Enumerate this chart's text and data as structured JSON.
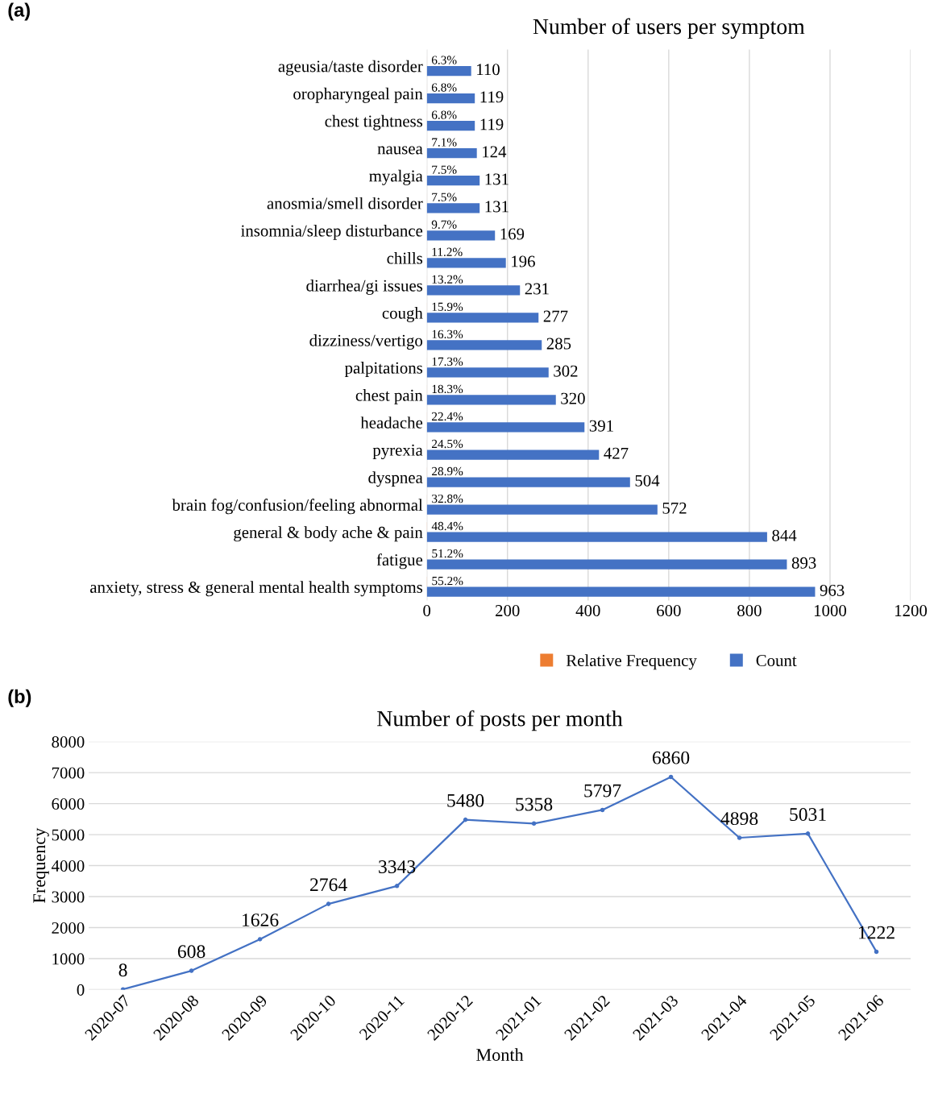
{
  "chart_data": [
    {
      "type": "bar",
      "orientation": "horizontal",
      "title": "Number of users per symptom",
      "categories": [
        "ageusia/taste disorder",
        "oropharyngeal pain",
        "chest tightness",
        "nausea",
        "myalgia",
        "anosmia/smell disorder",
        "insomnia/sleep disturbance",
        "chills",
        "diarrhea/gi issues",
        "cough",
        "dizziness/vertigo",
        "palpitations",
        "chest pain",
        "headache",
        "pyrexia",
        "dyspnea",
        "brain fog/confusion/feeling abnormal",
        "general & body ache & pain",
        "fatigue",
        "anxiety, stress & general mental health symptoms"
      ],
      "series": [
        {
          "name": "Relative Frequency",
          "color": "#ed7d31",
          "values": [
            0.063,
            0.068,
            0.068,
            0.071,
            0.075,
            0.075,
            0.097,
            0.112,
            0.132,
            0.159,
            0.163,
            0.173,
            0.183,
            0.224,
            0.245,
            0.289,
            0.328,
            0.484,
            0.512,
            0.552
          ],
          "value_labels": [
            "6.3%",
            "6.8%",
            "6.8%",
            "7.1%",
            "7.5%",
            "7.5%",
            "9.7%",
            "11.2%",
            "13.2%",
            "15.9%",
            "16.3%",
            "17.3%",
            "18.3%",
            "22.4%",
            "24.5%",
            "28.9%",
            "32.8%",
            "48.4%",
            "51.2%",
            "55.2%"
          ]
        },
        {
          "name": "Count",
          "color": "#4472c4",
          "values": [
            110,
            119,
            119,
            124,
            131,
            131,
            169,
            196,
            231,
            277,
            285,
            302,
            320,
            391,
            427,
            504,
            572,
            844,
            893,
            963
          ]
        }
      ],
      "xlim": [
        0,
        1200
      ],
      "xticks": [
        0,
        200,
        400,
        600,
        800,
        1000,
        1200
      ],
      "grid": "x",
      "legend": "bottom",
      "data_labels": true,
      "annotations": [
        "(a)"
      ]
    },
    {
      "type": "line",
      "title": "Number of posts per month",
      "xlabel": "Month",
      "ylabel": "Frequency",
      "categories": [
        "2020-07",
        "2020-08",
        "2020-09",
        "2020-10",
        "2020-11",
        "2020-12",
        "2021-01",
        "2021-02",
        "2021-03",
        "2021-04",
        "2021-05",
        "2021-06"
      ],
      "series": [
        {
          "color": "#4472c4",
          "values": [
            8,
            608,
            1626,
            2764,
            3343,
            5480,
            5358,
            5797,
            6860,
            4898,
            5031,
            1222
          ]
        }
      ],
      "ylim": [
        0,
        8000
      ],
      "yticks": [
        0,
        1000,
        2000,
        3000,
        4000,
        5000,
        6000,
        7000,
        8000
      ],
      "grid": "y",
      "marker": "circle",
      "line_style": "solid",
      "data_labels": true,
      "legend": false,
      "annotations": [
        "(b)"
      ]
    }
  ]
}
